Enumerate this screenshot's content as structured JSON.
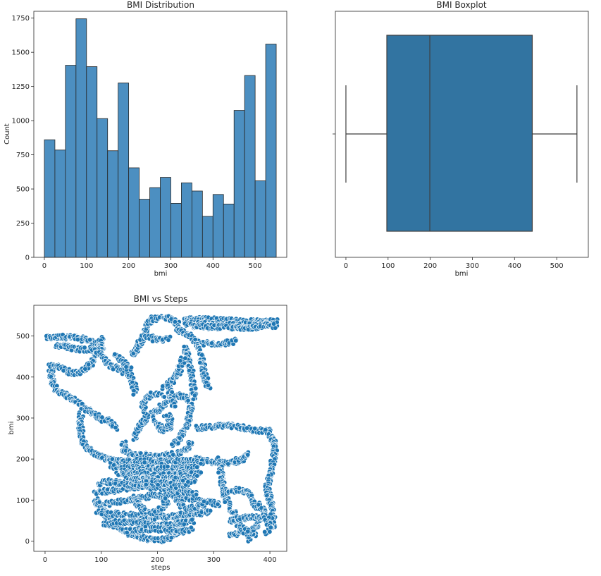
{
  "chart_data": [
    {
      "type": "bar",
      "title": "BMI Distribution",
      "xlabel": "bmi",
      "ylabel": "Count",
      "xlim": [
        -25,
        575
      ],
      "ylim": [
        0,
        1800
      ],
      "xticks": [
        "0",
        "100",
        "200",
        "300",
        "400",
        "500"
      ],
      "yticks": [
        "0",
        "250",
        "500",
        "750",
        "1000",
        "1250",
        "1500",
        "1750"
      ],
      "bin_width": 25,
      "bin_edges_start": 0,
      "counts": [
        860,
        785,
        1405,
        1745,
        1395,
        1015,
        780,
        1275,
        655,
        425,
        510,
        585,
        395,
        545,
        485,
        300,
        460,
        390,
        1075,
        1330,
        560,
        1560
      ],
      "bar_color": "#4c8fc1",
      "grid": false
    },
    {
      "type": "boxplot",
      "title": "BMI Boxplot",
      "xlabel": "bmi",
      "xlim": [
        -25,
        575
      ],
      "xticks": [
        "0",
        "100",
        "200",
        "300",
        "400",
        "500"
      ],
      "whisker_low": 0,
      "q1": 97,
      "median": 199,
      "q3": 442,
      "whisker_high": 548,
      "box_color": "#3274a1",
      "grid": false
    },
    {
      "type": "scatter",
      "title": "BMI vs Steps",
      "xlabel": "steps",
      "ylabel": "bmi",
      "xlim": [
        -20,
        430
      ],
      "ylim": [
        -25,
        575
      ],
      "xticks": [
        "0",
        "100",
        "200",
        "300",
        "400"
      ],
      "yticks": [
        "0",
        "100",
        "200",
        "300",
        "400",
        "500"
      ],
      "point_color": "#1f77b4",
      "grid": false,
      "path_segments": [
        [
          [
            2,
            495
          ],
          [
            30,
            498
          ],
          [
            55,
            496
          ],
          [
            80,
            488
          ],
          [
            100,
            478
          ]
        ],
        [
          [
            20,
            478
          ],
          [
            50,
            470
          ],
          [
            80,
            465
          ],
          [
            100,
            470
          ]
        ],
        [
          [
            100,
            495
          ],
          [
            100,
            470
          ],
          [
            90,
            455
          ],
          [
            80,
            430
          ],
          [
            70,
            420
          ]
        ],
        [
          [
            10,
            430
          ],
          [
            12,
            400
          ],
          [
            15,
            375
          ],
          [
            35,
            355
          ],
          [
            55,
            340
          ],
          [
            70,
            325
          ],
          [
            85,
            312
          ]
        ],
        [
          [
            10,
            430
          ],
          [
            30,
            422
          ],
          [
            45,
            412
          ],
          [
            60,
            410
          ],
          [
            75,
            425
          ]
        ],
        [
          [
            85,
            312
          ],
          [
            100,
            300
          ],
          [
            115,
            290
          ],
          [
            125,
            275
          ]
        ],
        [
          [
            80,
            470
          ],
          [
            100,
            455
          ],
          [
            115,
            430
          ],
          [
            130,
            420
          ],
          [
            150,
            405
          ],
          [
            158,
            380
          ],
          [
            160,
            360
          ]
        ],
        [
          [
            125,
            455
          ],
          [
            135,
            440
          ],
          [
            150,
            420
          ]
        ],
        [
          [
            65,
            310
          ],
          [
            62,
            285
          ],
          [
            65,
            255
          ],
          [
            72,
            230
          ],
          [
            85,
            215
          ],
          [
            110,
            200
          ],
          [
            140,
            192
          ]
        ],
        [
          [
            155,
            455
          ],
          [
            165,
            470
          ],
          [
            170,
            490
          ],
          [
            178,
            505
          ],
          [
            182,
            525
          ],
          [
            190,
            542
          ],
          [
            220,
            545
          ],
          [
            235,
            530
          ],
          [
            240,
            510
          ]
        ],
        [
          [
            180,
            500
          ],
          [
            200,
            490
          ],
          [
            220,
            495
          ]
        ],
        [
          [
            235,
            515
          ],
          [
            255,
            505
          ],
          [
            265,
            490
          ],
          [
            290,
            480
          ],
          [
            320,
            483
          ],
          [
            340,
            488
          ]
        ],
        [
          [
            250,
            540
          ],
          [
            290,
            540
          ],
          [
            330,
            538
          ],
          [
            370,
            535
          ],
          [
            410,
            535
          ]
        ],
        [
          [
            250,
            530
          ],
          [
            300,
            528
          ],
          [
            350,
            528
          ],
          [
            410,
            530
          ]
        ],
        [
          [
            260,
            525
          ],
          [
            300,
            522
          ],
          [
            350,
            520
          ],
          [
            410,
            525
          ]
        ],
        [
          [
            270,
            490
          ],
          [
            275,
            460
          ],
          [
            280,
            430
          ],
          [
            285,
            400
          ],
          [
            290,
            375
          ]
        ],
        [
          [
            250,
            470
          ],
          [
            255,
            440
          ],
          [
            260,
            415
          ],
          [
            263,
            385
          ],
          [
            265,
            350
          ]
        ],
        [
          [
            160,
            250
          ],
          [
            170,
            285
          ],
          [
            185,
            305
          ],
          [
            200,
            320
          ],
          [
            215,
            335
          ],
          [
            230,
            350
          ],
          [
            245,
            355
          ],
          [
            255,
            345
          ],
          [
            260,
            325
          ],
          [
            255,
            300
          ],
          [
            250,
            275
          ],
          [
            240,
            250
          ],
          [
            230,
            235
          ]
        ],
        [
          [
            180,
            310
          ],
          [
            175,
            330
          ],
          [
            180,
            350
          ],
          [
            195,
            360
          ],
          [
            210,
            355
          ]
        ],
        [
          [
            195,
            300
          ],
          [
            200,
            285
          ],
          [
            210,
            270
          ],
          [
            220,
            275
          ],
          [
            222,
            300
          ],
          [
            215,
            310
          ]
        ],
        [
          [
            210,
            375
          ],
          [
            225,
            390
          ],
          [
            235,
            405
          ],
          [
            240,
            420
          ],
          [
            245,
            445
          ]
        ],
        [
          [
            220,
            380
          ],
          [
            225,
            350
          ],
          [
            230,
            330
          ]
        ],
        [
          [
            140,
            240
          ],
          [
            140,
            220
          ],
          [
            160,
            210
          ],
          [
            190,
            208
          ],
          [
            220,
            210
          ],
          [
            240,
            215
          ],
          [
            255,
            225
          ],
          [
            260,
            240
          ]
        ],
        [
          [
            270,
            275
          ],
          [
            300,
            280
          ],
          [
            330,
            282
          ],
          [
            355,
            275
          ],
          [
            375,
            270
          ],
          [
            395,
            270
          ]
        ],
        [
          [
            395,
            270
          ],
          [
            405,
            250
          ],
          [
            410,
            225
          ],
          [
            405,
            190
          ],
          [
            400,
            160
          ],
          [
            395,
            130
          ],
          [
            400,
            100
          ],
          [
            405,
            70
          ],
          [
            405,
            40
          ],
          [
            395,
            20
          ]
        ],
        [
          [
            270,
            200
          ],
          [
            290,
            195
          ],
          [
            310,
            190
          ],
          [
            330,
            190
          ],
          [
            350,
            200
          ],
          [
            360,
            215
          ]
        ],
        [
          [
            115,
            195
          ],
          [
            150,
            195
          ],
          [
            190,
            195
          ],
          [
            230,
            195
          ],
          [
            260,
            195
          ],
          [
            280,
            192
          ]
        ],
        [
          [
            120,
            180
          ],
          [
            160,
            178
          ],
          [
            200,
            176
          ],
          [
            240,
            176
          ],
          [
            270,
            180
          ]
        ],
        [
          [
            130,
            165
          ],
          [
            170,
            162
          ],
          [
            210,
            160
          ],
          [
            250,
            162
          ],
          [
            275,
            165
          ]
        ],
        [
          [
            145,
            150
          ],
          [
            185,
            150
          ],
          [
            225,
            150
          ],
          [
            265,
            150
          ]
        ],
        [
          [
            310,
            200
          ],
          [
            312,
            170
          ],
          [
            315,
            140
          ],
          [
            320,
            110
          ],
          [
            325,
            90
          ]
        ],
        [
          [
            325,
            120
          ],
          [
            345,
            125
          ],
          [
            360,
            120
          ],
          [
            370,
            105
          ],
          [
            375,
            80
          ]
        ],
        [
          [
            330,
            80
          ],
          [
            340,
            60
          ],
          [
            345,
            40
          ],
          [
            355,
            30
          ],
          [
            365,
            20
          ],
          [
            375,
            15
          ]
        ],
        [
          [
            360,
            5
          ],
          [
            365,
            15
          ],
          [
            370,
            30
          ],
          [
            378,
            45
          ],
          [
            385,
            55
          ]
        ],
        [
          [
            330,
            50
          ],
          [
            345,
            55
          ],
          [
            360,
            58
          ],
          [
            380,
            60
          ],
          [
            400,
            60
          ]
        ],
        [
          [
            380,
            90
          ],
          [
            390,
            70
          ],
          [
            395,
            50
          ],
          [
            400,
            35
          ]
        ],
        [
          [
            90,
            100
          ],
          [
            100,
            80
          ],
          [
            110,
            60
          ],
          [
            125,
            40
          ],
          [
            140,
            25
          ],
          [
            160,
            12
          ],
          [
            185,
            5
          ],
          [
            205,
            2
          ],
          [
            220,
            8
          ],
          [
            235,
            20
          ],
          [
            245,
            35
          ]
        ],
        [
          [
            90,
            90
          ],
          [
            110,
            90
          ],
          [
            130,
            95
          ],
          [
            150,
            100
          ],
          [
            170,
            105
          ],
          [
            190,
            110
          ],
          [
            210,
            112
          ],
          [
            230,
            110
          ],
          [
            250,
            105
          ],
          [
            270,
            100
          ],
          [
            290,
            95
          ],
          [
            310,
            90
          ]
        ],
        [
          [
            90,
            120
          ],
          [
            110,
            122
          ],
          [
            130,
            125
          ],
          [
            150,
            130
          ],
          [
            170,
            132
          ],
          [
            190,
            130
          ],
          [
            210,
            128
          ],
          [
            230,
            125
          ],
          [
            250,
            120
          ],
          [
            270,
            115
          ]
        ],
        [
          [
            95,
            70
          ],
          [
            115,
            68
          ],
          [
            135,
            65
          ],
          [
            155,
            62
          ],
          [
            175,
            60
          ],
          [
            195,
            58
          ],
          [
            215,
            60
          ],
          [
            235,
            62
          ],
          [
            255,
            65
          ],
          [
            275,
            68
          ],
          [
            295,
            72
          ]
        ],
        [
          [
            95,
            140
          ],
          [
            115,
            145
          ],
          [
            135,
            140
          ],
          [
            155,
            135
          ],
          [
            175,
            140
          ],
          [
            195,
            145
          ],
          [
            215,
            140
          ],
          [
            235,
            135
          ],
          [
            255,
            138
          ]
        ],
        [
          [
            105,
            40
          ],
          [
            125,
            45
          ],
          [
            145,
            48
          ],
          [
            165,
            45
          ],
          [
            185,
            40
          ],
          [
            205,
            38
          ],
          [
            225,
            40
          ],
          [
            245,
            45
          ],
          [
            265,
            50
          ]
        ],
        [
          [
            150,
            25
          ],
          [
            170,
            28
          ],
          [
            190,
            30
          ],
          [
            210,
            28
          ],
          [
            230,
            25
          ],
          [
            250,
            22
          ],
          [
            260,
            30
          ]
        ],
        [
          [
            160,
            110
          ],
          [
            165,
            90
          ],
          [
            175,
            75
          ],
          [
            190,
            70
          ],
          [
            205,
            75
          ],
          [
            215,
            90
          ],
          [
            210,
            105
          ]
        ],
        [
          [
            235,
            100
          ],
          [
            245,
            85
          ],
          [
            260,
            80
          ],
          [
            275,
            85
          ],
          [
            285,
            95
          ]
        ],
        [
          [
            170,
            180
          ],
          [
            175,
            160
          ],
          [
            180,
            140
          ]
        ],
        [
          [
            240,
            180
          ],
          [
            245,
            160
          ],
          [
            250,
            140
          ]
        ],
        [
          [
            330,
            15
          ],
          [
            345,
            20
          ],
          [
            360,
            25
          ]
        ]
      ]
    }
  ]
}
